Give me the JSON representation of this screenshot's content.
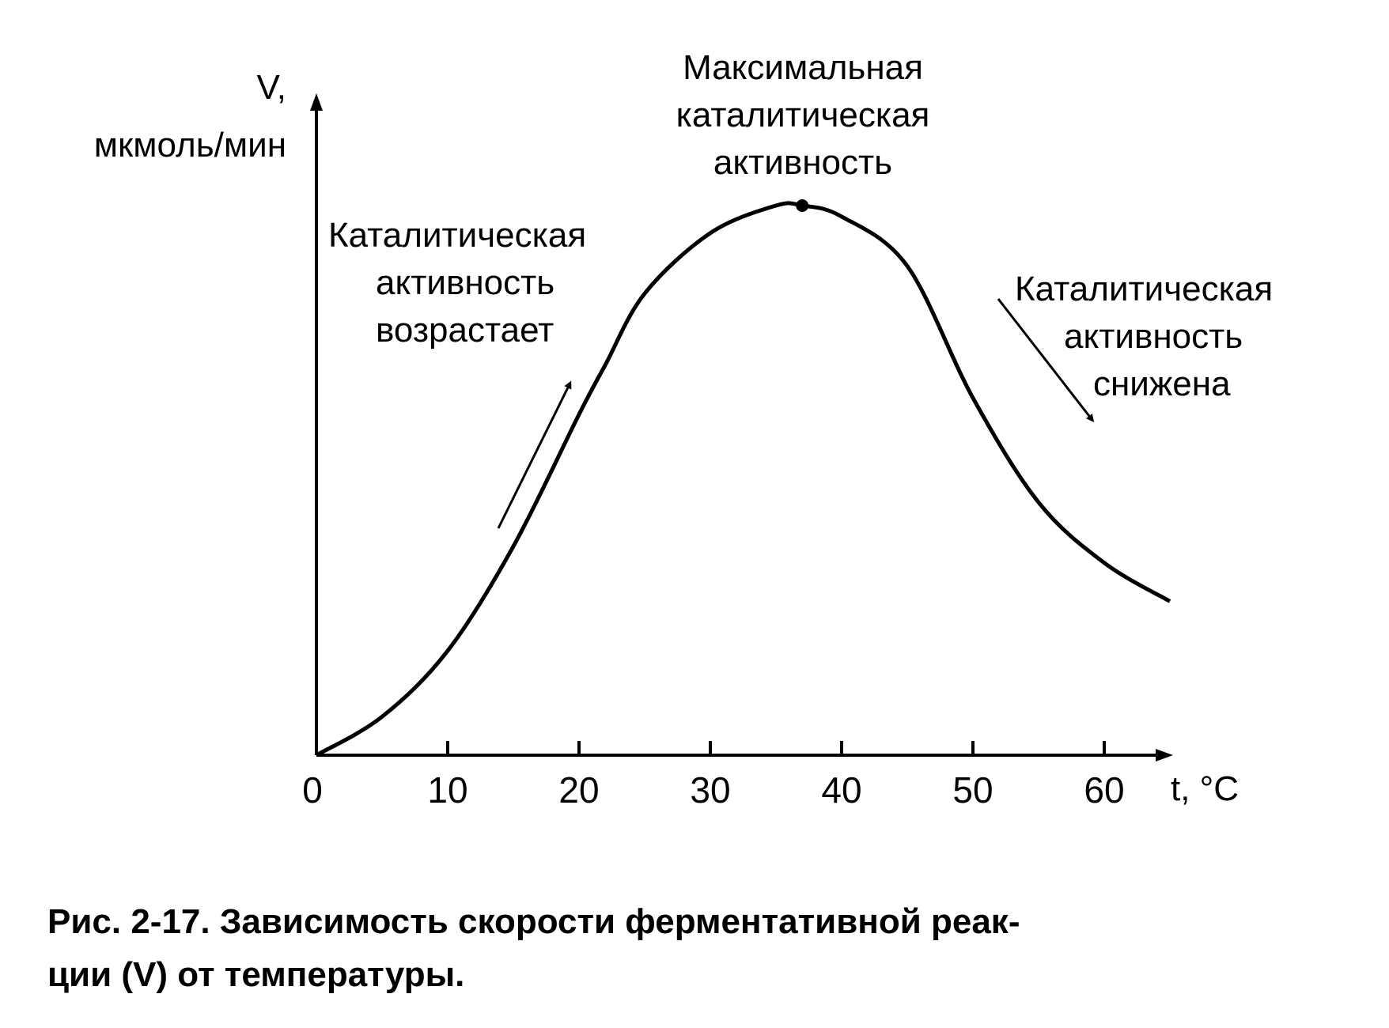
{
  "chart_data": {
    "type": "line",
    "title": "",
    "xlabel": "t, °C",
    "ylabel_line1": "V,",
    "ylabel_line2": "мкмоль/мин",
    "xlim": [
      0,
      65
    ],
    "ylim": [
      0,
      100
    ],
    "grid": false,
    "x_ticks": [
      0,
      10,
      20,
      30,
      40,
      50,
      60
    ],
    "x_tick_labels": [
      "0",
      "10",
      "20",
      "30",
      "40",
      "50",
      "60"
    ],
    "series": [
      {
        "x": [
          0,
          5,
          10,
          15,
          20,
          22,
          25,
          30,
          35,
          37,
          40,
          45,
          50,
          55,
          60,
          65
        ],
        "y": [
          0,
          7,
          19,
          38,
          62,
          71,
          84,
          95,
          100,
          100,
          98,
          89,
          65,
          46,
          35,
          28
        ]
      }
    ],
    "peak": {
      "x": 37,
      "y": 100
    },
    "annotations": {
      "max": [
        "Максимальная",
        "каталитическая",
        "активность"
      ],
      "rise": [
        "Каталитическая",
        "активность",
        "возрастает"
      ],
      "fall": [
        "Каталитическая",
        "активность",
        "снижена"
      ]
    }
  },
  "caption": {
    "line1": "Рис. 2-17. Зависимость скорости ферментативной реак-",
    "line2": "ции (V) от температуры."
  }
}
